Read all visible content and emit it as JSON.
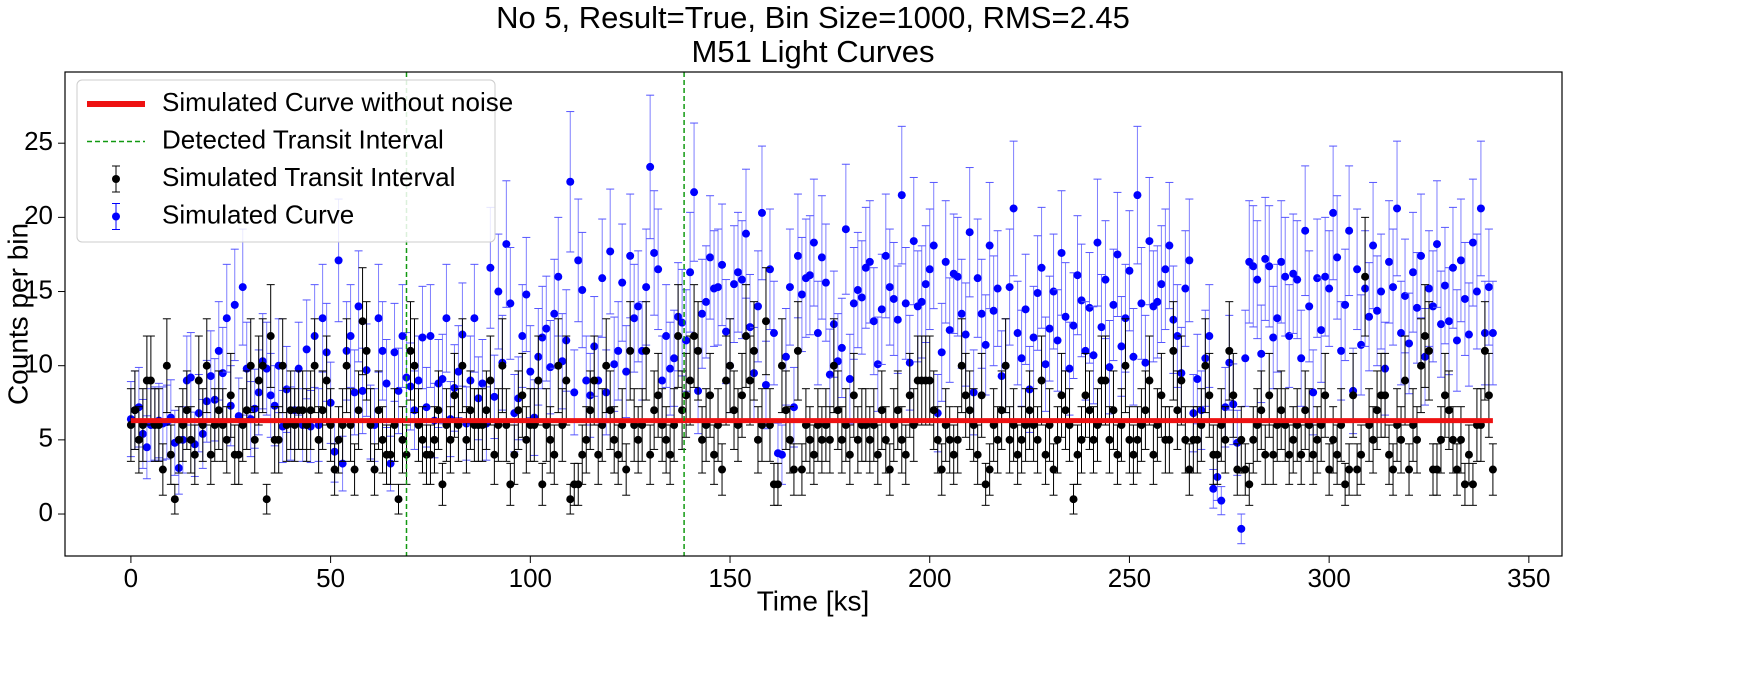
{
  "chart_data": {
    "type": "scatter",
    "title": "No 5, Result=True, Bin Size=1000, RMS=2.45",
    "subtitle": "M51 Light Curves",
    "xlabel": "Time [ks]",
    "ylabel": "Counts per bin",
    "xlim": [
      -16.5,
      358.3
    ],
    "ylim": [
      -2.83,
      29.8
    ],
    "xticks": [
      0,
      50,
      100,
      150,
      200,
      250,
      300,
      350
    ],
    "yticks": [
      0,
      5,
      10,
      15,
      20,
      25
    ],
    "errorbars": "poisson",
    "legend": "upper left",
    "x": [
      0,
      1,
      2,
      3,
      4,
      5,
      6,
      7,
      8,
      9,
      10,
      11,
      12,
      13,
      14,
      15,
      16,
      17,
      18,
      19,
      20,
      21,
      22,
      23,
      24,
      25,
      26,
      27,
      28,
      29,
      30,
      31,
      32,
      33,
      34,
      35,
      36,
      37,
      38,
      39,
      40,
      41,
      42,
      43,
      44,
      45,
      46,
      47,
      48,
      49,
      50,
      51,
      52,
      53,
      54,
      55,
      56,
      57,
      58,
      59,
      60,
      61,
      62,
      63,
      64,
      65,
      66,
      67,
      68,
      69,
      70,
      71,
      72,
      73,
      74,
      75,
      76,
      77,
      78,
      79,
      80,
      81,
      82,
      83,
      84,
      85,
      86,
      87,
      88,
      89,
      90,
      91,
      92,
      93,
      94,
      95,
      96,
      97,
      98,
      99,
      100,
      101,
      102,
      103,
      104,
      105,
      106,
      107,
      108,
      109,
      110,
      111,
      112,
      113,
      114,
      115,
      116,
      117,
      118,
      119,
      120,
      121,
      122,
      123,
      124,
      125,
      126,
      127,
      128,
      129,
      130,
      131,
      132,
      133,
      134,
      135,
      136,
      137,
      138,
      139,
      140,
      141,
      142,
      143,
      144,
      145,
      146,
      147,
      148,
      149,
      150,
      151,
      152,
      153,
      154,
      155,
      156,
      157,
      158,
      159,
      160,
      161,
      162,
      163,
      164,
      165,
      166,
      167,
      168,
      169,
      170,
      171,
      172,
      173,
      174,
      175,
      176,
      177,
      178,
      179,
      180,
      181,
      182,
      183,
      184,
      185,
      186,
      187,
      188,
      189,
      190,
      191,
      192,
      193,
      194,
      195,
      196,
      197,
      198,
      199,
      200,
      201,
      202,
      203,
      204,
      205,
      206,
      207,
      208,
      209,
      210,
      211,
      212,
      213,
      214,
      215,
      216,
      217,
      218,
      219,
      220,
      221,
      222,
      223,
      224,
      225,
      226,
      227,
      228,
      229,
      230,
      231,
      232,
      233,
      234,
      235,
      236,
      237,
      238,
      239,
      240,
      241,
      242,
      243,
      244,
      245,
      246,
      247,
      248,
      249,
      250,
      251,
      252,
      253,
      254,
      255,
      256,
      257,
      258,
      259,
      260,
      261,
      262,
      263,
      264,
      265,
      266,
      267,
      268,
      269,
      270,
      271,
      272,
      273,
      274,
      275,
      276,
      277,
      278,
      279,
      280,
      281,
      282,
      283,
      284,
      285,
      286,
      287,
      288,
      289,
      290,
      291,
      292,
      293,
      294,
      295,
      296,
      297,
      298,
      299,
      300,
      301,
      302,
      303,
      304,
      305,
      306,
      307,
      308,
      309,
      310,
      311,
      312,
      313,
      314,
      315,
      316,
      317,
      318,
      319,
      320,
      321,
      322,
      323,
      324,
      325,
      326,
      327,
      328,
      329,
      330,
      331,
      332,
      333,
      334,
      335,
      336,
      337,
      338,
      339,
      340,
      341
    ],
    "series": [
      {
        "name": "Simulated Curve without noise",
        "color": "#ee1111",
        "kind": "line",
        "x": [
          0,
          341
        ],
        "values": [
          6.3,
          6.3
        ]
      },
      {
        "name": "Simulated Transit Interval",
        "color": "#000000",
        "kind": "errorbar",
        "values": [
          6,
          7,
          5,
          6,
          9,
          9,
          6,
          6,
          3,
          10,
          4,
          1,
          5,
          6,
          7,
          5,
          4,
          9,
          6,
          10,
          4,
          6,
          7,
          6,
          5,
          8,
          4,
          4,
          6,
          7,
          10,
          5,
          9,
          10,
          1,
          12,
          5,
          5,
          10,
          6,
          7,
          6,
          7,
          7,
          6,
          7,
          10,
          5,
          7,
          9,
          6,
          3,
          5,
          6,
          10,
          6,
          3,
          7,
          13,
          11,
          6,
          3,
          7,
          5,
          4,
          4,
          6,
          1,
          5,
          4,
          11,
          10,
          6,
          5,
          4,
          4,
          5,
          7,
          2,
          6,
          5,
          8,
          6,
          10,
          5,
          7,
          6,
          6,
          6,
          7,
          9,
          4,
          6,
          10,
          6,
          2,
          4,
          7,
          8,
          5,
          6,
          6,
          9,
          2,
          6,
          5,
          4,
          10,
          6,
          9,
          1,
          2,
          2,
          4,
          5,
          7,
          9,
          4,
          6,
          10,
          7,
          5,
          4,
          6,
          3,
          11,
          6,
          5,
          6,
          11,
          4,
          7,
          8,
          6,
          5,
          4,
          6,
          12,
          7,
          8,
          9,
          12,
          11,
          5,
          6,
          8,
          4,
          6,
          3,
          9,
          10,
          7,
          6,
          8,
          12,
          9,
          11,
          5,
          6,
          13,
          6,
          2,
          2,
          10,
          7,
          5,
          3,
          11,
          3,
          6,
          5,
          4,
          6,
          5,
          6,
          5,
          10,
          7,
          5,
          6,
          4,
          8,
          5,
          6,
          6,
          5,
          6,
          4,
          7,
          5,
          3,
          6,
          7,
          5,
          4,
          8,
          6,
          9,
          9,
          9,
          9,
          7,
          5,
          3,
          6,
          5,
          4,
          5,
          10,
          8,
          7,
          6,
          4,
          8,
          2,
          3,
          6,
          5,
          7,
          10,
          5,
          6,
          4,
          5,
          6,
          7,
          6,
          5,
          9,
          4,
          6,
          3,
          5,
          8,
          7,
          6,
          1,
          4,
          5,
          8,
          7,
          5,
          6,
          9,
          9,
          5,
          7,
          4,
          6,
          10,
          5,
          4,
          5,
          6,
          7,
          9,
          4,
          6,
          8,
          5,
          5,
          11,
          7,
          9,
          5,
          3,
          5,
          5,
          6,
          10,
          8,
          4,
          4,
          6,
          5,
          11,
          8,
          3,
          5,
          3,
          2,
          5,
          6,
          7,
          4,
          8,
          4,
          6,
          7,
          6,
          4,
          5,
          6,
          4,
          7,
          6,
          4,
          5,
          6,
          8,
          3,
          5,
          4,
          6,
          2,
          3,
          8,
          3,
          4,
          16,
          6,
          5,
          7,
          8,
          8,
          4,
          3,
          6,
          5,
          9,
          3,
          6,
          5,
          10,
          12,
          11,
          3,
          3,
          5,
          8,
          7,
          5,
          3,
          5,
          2,
          4,
          2,
          6,
          6,
          11,
          8,
          3
        ]
      },
      {
        "name": "Simulated Curve",
        "color": "#0000ff",
        "kind": "errorbar",
        "values": [
          6.4,
          7.0,
          7.2,
          5.4,
          4.5,
          6.0,
          6.1,
          6.3,
          6.1,
          6.2,
          6.5,
          4.8,
          3.1,
          5.0,
          9.0,
          9.2,
          4.7,
          6.8,
          5.4,
          7.6,
          9.3,
          7.7,
          11.0,
          9.5,
          13.2,
          7.3,
          14.1,
          6.6,
          15.3,
          9.8,
          6.4,
          7.1,
          8.2,
          10.3,
          9.8,
          8.0,
          7.3,
          10.0,
          5.9,
          8.4,
          6.1,
          7.0,
          9.8,
          6.0,
          11.1,
          5.9,
          12.0,
          6.0,
          13.2,
          10.9,
          7.5,
          4.2,
          17.1,
          3.4,
          11.0,
          12.0,
          8.2,
          14.0,
          8.3,
          9.7,
          6.2,
          6.0,
          13.2,
          11.0,
          8.8,
          3.4,
          10.9,
          8.3,
          12.0,
          9.2,
          8.6,
          7.0,
          9.0,
          11.9,
          7.2,
          12.0,
          6.3,
          8.8,
          9.1,
          13.2,
          6.4,
          8.5,
          9.6,
          12.1,
          6.1,
          9.0,
          13.2,
          7.8,
          8.8,
          6.1,
          16.6,
          7.9,
          15.0,
          10.2,
          18.2,
          14.2,
          6.8,
          7.8,
          12.0,
          14.8,
          9.6,
          6.5,
          10.6,
          11.9,
          12.5,
          9.9,
          13.5,
          16.0,
          10.3,
          11.7,
          22.4,
          8.2,
          17.1,
          15.1,
          9.0,
          8.0,
          11.3,
          9.0,
          15.9,
          8.2,
          17.7,
          10.1,
          11.0,
          15.6,
          9.6,
          17.4,
          13.2,
          14.0,
          11.0,
          15.3,
          23.4,
          17.6,
          16.5,
          9.0,
          12.0,
          9.8,
          10.5,
          13.3,
          12.9,
          11.7,
          16.3,
          21.7,
          8.3,
          13.5,
          14.3,
          17.3,
          15.2,
          15.3,
          16.8,
          12.3,
          10.0,
          15.5,
          16.3,
          15.8,
          18.9,
          12.6,
          9.5,
          14.0,
          20.3,
          8.7,
          16.5,
          12.2,
          4.1,
          4.0,
          10.6,
          15.3,
          7.2,
          17.4,
          14.8,
          15.9,
          16.1,
          18.3,
          12.2,
          17.3,
          15.6,
          9.4,
          12.8,
          10.3,
          11.2,
          19.2,
          9.1,
          14.2,
          15.1,
          14.6,
          16.6,
          17.0,
          13.0,
          10.1,
          13.8,
          17.4,
          15.3,
          14.5,
          13.1,
          21.5,
          14.2,
          10.2,
          18.4,
          14.0,
          14.3,
          15.5,
          16.5,
          18.1,
          6.8,
          10.9,
          17.0,
          12.4,
          16.2,
          16.0,
          13.5,
          12.1,
          19.0,
          8.2,
          15.9,
          13.5,
          11.4,
          18.1,
          13.7,
          15.2,
          9.3,
          10.0,
          15.3,
          20.6,
          12.2,
          10.5,
          13.8,
          8.4,
          11.9,
          14.9,
          16.6,
          10.1,
          12.5,
          15.0,
          11.7,
          17.6,
          13.3,
          9.8,
          12.7,
          16.1,
          14.4,
          11.0,
          13.9,
          10.7,
          18.3,
          12.6,
          15.8,
          9.9,
          14.1,
          17.5,
          11.3,
          13.2,
          16.4,
          10.6,
          21.5,
          14.2,
          10.2,
          18.4,
          14.0,
          14.3,
          15.5,
          16.5,
          18.1,
          13.1,
          12.0,
          9.5,
          15.2,
          17.1,
          6.8,
          9.1,
          7.0,
          10.5,
          12.0,
          1.7,
          2.5,
          0.9,
          7.2,
          10.2,
          7.4,
          4.8,
          -1.0,
          10.5,
          17.0,
          16.7,
          15.8,
          10.8,
          17.2,
          16.7,
          11.9,
          13.2,
          17.0,
          16.0,
          12.0,
          16.2,
          15.8,
          10.5,
          19.1,
          14.0,
          8.2,
          15.9,
          12.4,
          16.0,
          15.2,
          20.3,
          17.3,
          11.0,
          14.1,
          19.1,
          8.3,
          16.5,
          11.4,
          15.2,
          13.3,
          18.1,
          13.7,
          15.0,
          9.8,
          17.0,
          15.3,
          20.6,
          12.2,
          14.7,
          11.5,
          16.3,
          13.9,
          17.4,
          10.6,
          15.2,
          14.0,
          18.2,
          12.8,
          15.4,
          13.0,
          16.6,
          11.7,
          17.1,
          14.5,
          12.1,
          18.3,
          15.0,
          20.6,
          12.2,
          15.3,
          12.2
        ]
      }
    ],
    "vlines": {
      "name": "Detected Transit Interval",
      "color": "#119911",
      "x": [
        69,
        138.5
      ]
    }
  }
}
